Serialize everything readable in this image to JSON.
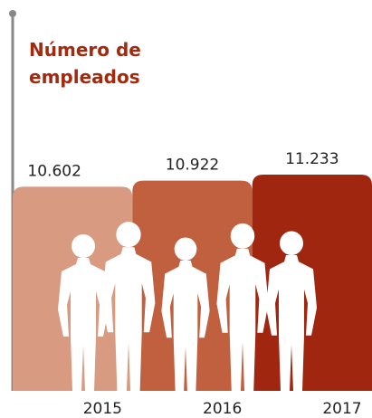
{
  "chart_data": {
    "type": "bar",
    "title": "Número de empleados",
    "categories": [
      "2015",
      "2016",
      "2017"
    ],
    "values": [
      10602,
      10922,
      11233
    ],
    "value_labels": [
      "10.602",
      "10.922",
      "11.233"
    ],
    "colors": [
      "#d99a82",
      "#c1603f",
      "#a0260f"
    ]
  }
}
